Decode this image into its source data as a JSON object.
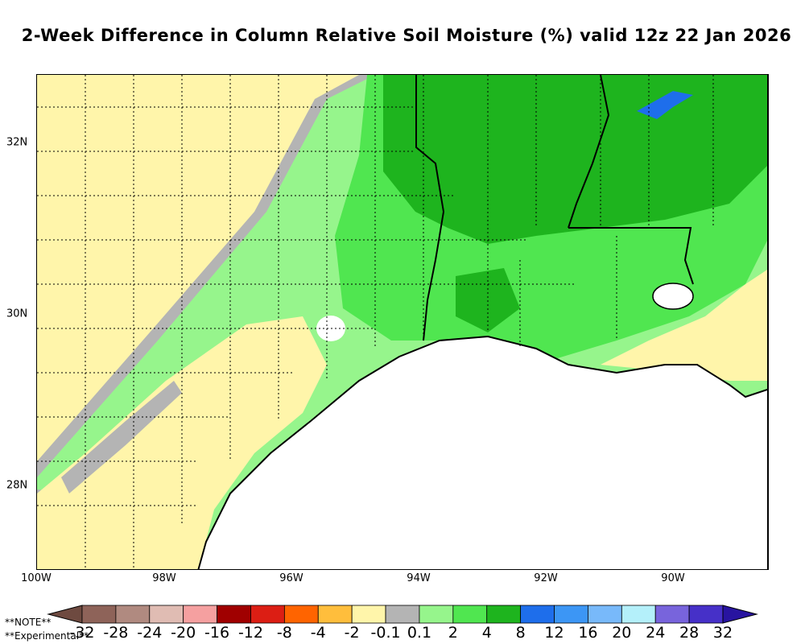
{
  "title": "2-Week Difference in Column Relative Soil Moisture (%) valid 12z 22 Jan 2026",
  "map": {
    "lon_ticks": [
      "100W",
      "98W",
      "96W",
      "94W",
      "92W",
      "90W"
    ],
    "lat_ticks": [
      "32N",
      "30N",
      "28N"
    ]
  },
  "colorbar": {
    "labels": [
      "-32",
      "-28",
      "-24",
      "-20",
      "-16",
      "-12",
      "-8",
      "-4",
      "-2",
      "-0.1",
      "0.1",
      "2",
      "4",
      "8",
      "12",
      "16",
      "20",
      "24",
      "28",
      "32"
    ],
    "colors": [
      "#6e4a40",
      "#8e6359",
      "#b08a80",
      "#e0bcb3",
      "#f5a0a0",
      "#a00000",
      "#dc1e14",
      "#ff6400",
      "#ffbe3c",
      "#fff5aa",
      "#b4b4b4",
      "#96f58c",
      "#50e650",
      "#1eb41e",
      "#1e6eeb",
      "#3c96f5",
      "#78b9fa",
      "#b4f0fa",
      "#7864dc",
      "#4630c8",
      "#2814a0"
    ]
  },
  "notes": [
    "**NOTE**",
    "**Experimental**"
  ]
}
